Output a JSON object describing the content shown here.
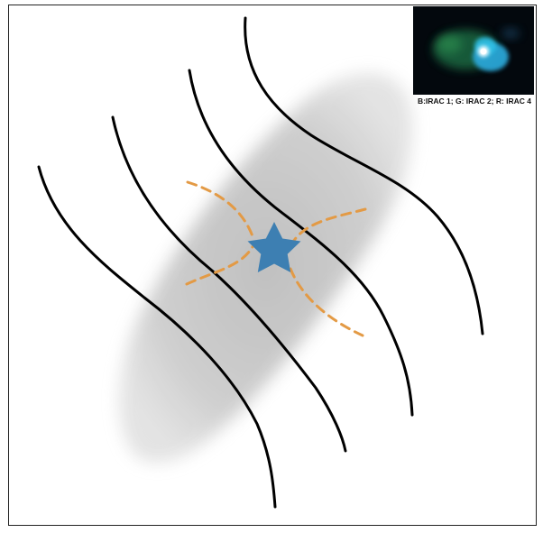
{
  "inset": {
    "caption": "B:IRAC 1; G: IRAC 2; R: IRAC 4"
  },
  "colors": {
    "field_lines": "#000000",
    "outflow_dashes": "#e39a45",
    "star": "#3d7fb2",
    "cloud": "#c9c9c9",
    "frame": "#222222"
  },
  "icons": {
    "protostar": "star-icon"
  }
}
